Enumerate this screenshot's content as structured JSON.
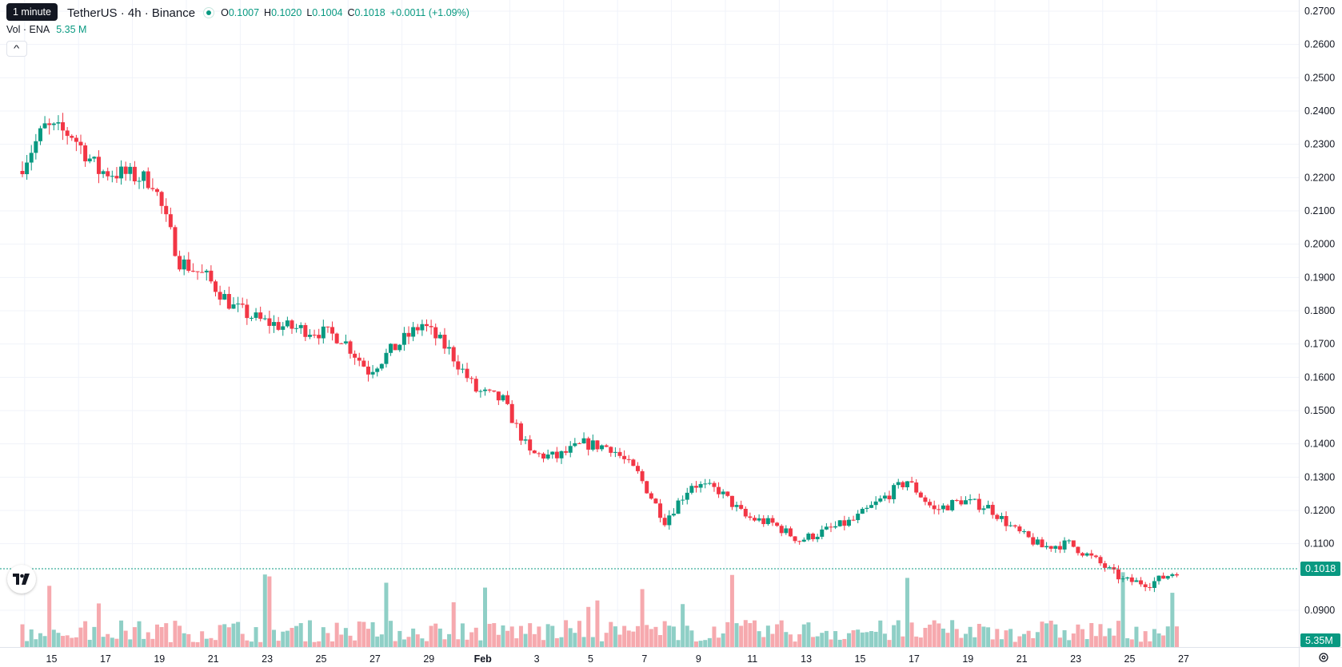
{
  "legend": {
    "tooltip": "1 minute",
    "symbol": "TetherUS · 4h · Binance",
    "open_label": "O",
    "open": "0.1007",
    "high_label": "H",
    "high": "0.1020",
    "low_label": "L",
    "low": "0.1004",
    "close_label": "C",
    "close": "0.1018",
    "change": "+0.0011 (+1.09%)"
  },
  "volume_legend": {
    "label": "Vol · ENA",
    "value": "5.35 M"
  },
  "price_axis": {
    "labels": [
      "0.2700",
      "0.2600",
      "0.2500",
      "0.2400",
      "0.2300",
      "0.2200",
      "0.2100",
      "0.2000",
      "0.1900",
      "0.1800",
      "0.1700",
      "0.1600",
      "0.1500",
      "0.1400",
      "0.1300",
      "0.1200",
      "0.1100",
      "0.0900"
    ],
    "current_price_tag": "0.1018",
    "volume_tag": "5.35M"
  },
  "time_axis": {
    "labels": [
      "15",
      "17",
      "19",
      "21",
      "23",
      "25",
      "27",
      "29",
      "Feb",
      "3",
      "5",
      "7",
      "9",
      "11",
      "13",
      "15",
      "17",
      "19",
      "21",
      "23",
      "25",
      "27"
    ]
  },
  "colors": {
    "up": "#089981",
    "down": "#f23645",
    "up_volume": "#8fcfc6",
    "down_volume": "#f6a9ae",
    "grid": "#f0f3fa",
    "current_price": "#089981"
  },
  "icons": [
    "chevron-up-icon",
    "tradingview-logo",
    "settings-gear-icon"
  ],
  "chart_data": {
    "type": "candlestick",
    "interval": "4h",
    "y_axis_range": [
      0.083,
      0.272
    ],
    "current_price": 0.1018,
    "price_anchors": [
      {
        "date": "Jan 14",
        "close": 0.235
      },
      {
        "date": "Jan 15",
        "close": 0.233
      },
      {
        "date": "Jan 16",
        "close": 0.222
      },
      {
        "date": "Jan 17",
        "close": 0.221
      },
      {
        "date": "Jan 18",
        "close": 0.219
      },
      {
        "date": "Jan 19",
        "close": 0.195
      },
      {
        "date": "Jan 20",
        "close": 0.19
      },
      {
        "date": "Jan 21",
        "close": 0.181
      },
      {
        "date": "Jan 22",
        "close": 0.177
      },
      {
        "date": "Jan 23",
        "close": 0.175
      },
      {
        "date": "Jan 24",
        "close": 0.174
      },
      {
        "date": "Jan 25",
        "close": 0.172
      },
      {
        "date": "Jan 26",
        "close": 0.162
      },
      {
        "date": "Jan 27",
        "close": 0.169
      },
      {
        "date": "Jan 28",
        "close": 0.176
      },
      {
        "date": "Jan 29",
        "close": 0.168
      },
      {
        "date": "Jan 30",
        "close": 0.156
      },
      {
        "date": "Jan 31",
        "close": 0.153
      },
      {
        "date": "Feb 1",
        "close": 0.137
      },
      {
        "date": "Feb 2",
        "close": 0.136
      },
      {
        "date": "Feb 3",
        "close": 0.14
      },
      {
        "date": "Feb 4",
        "close": 0.139
      },
      {
        "date": "Feb 5",
        "close": 0.131
      },
      {
        "date": "Feb 6",
        "close": 0.117
      },
      {
        "date": "Feb 7",
        "close": 0.128
      },
      {
        "date": "Feb 8",
        "close": 0.126
      },
      {
        "date": "Feb 9",
        "close": 0.118
      },
      {
        "date": "Feb 10",
        "close": 0.116
      },
      {
        "date": "Feb 11",
        "close": 0.111
      },
      {
        "date": "Feb 12",
        "close": 0.114
      },
      {
        "date": "Feb 13",
        "close": 0.117
      },
      {
        "date": "Feb 14",
        "close": 0.123
      },
      {
        "date": "Feb 15",
        "close": 0.129
      },
      {
        "date": "Feb 16",
        "close": 0.12
      },
      {
        "date": "Feb 17",
        "close": 0.123
      },
      {
        "date": "Feb 18",
        "close": 0.121
      },
      {
        "date": "Feb 19",
        "close": 0.114
      },
      {
        "date": "Feb 20",
        "close": 0.109
      },
      {
        "date": "Feb 21",
        "close": 0.11
      },
      {
        "date": "Feb 22",
        "close": 0.105
      },
      {
        "date": "Feb 23",
        "close": 0.099
      },
      {
        "date": "Feb 24",
        "close": 0.098
      },
      {
        "date": "Feb 25",
        "close": 0.1018
      }
    ]
  }
}
